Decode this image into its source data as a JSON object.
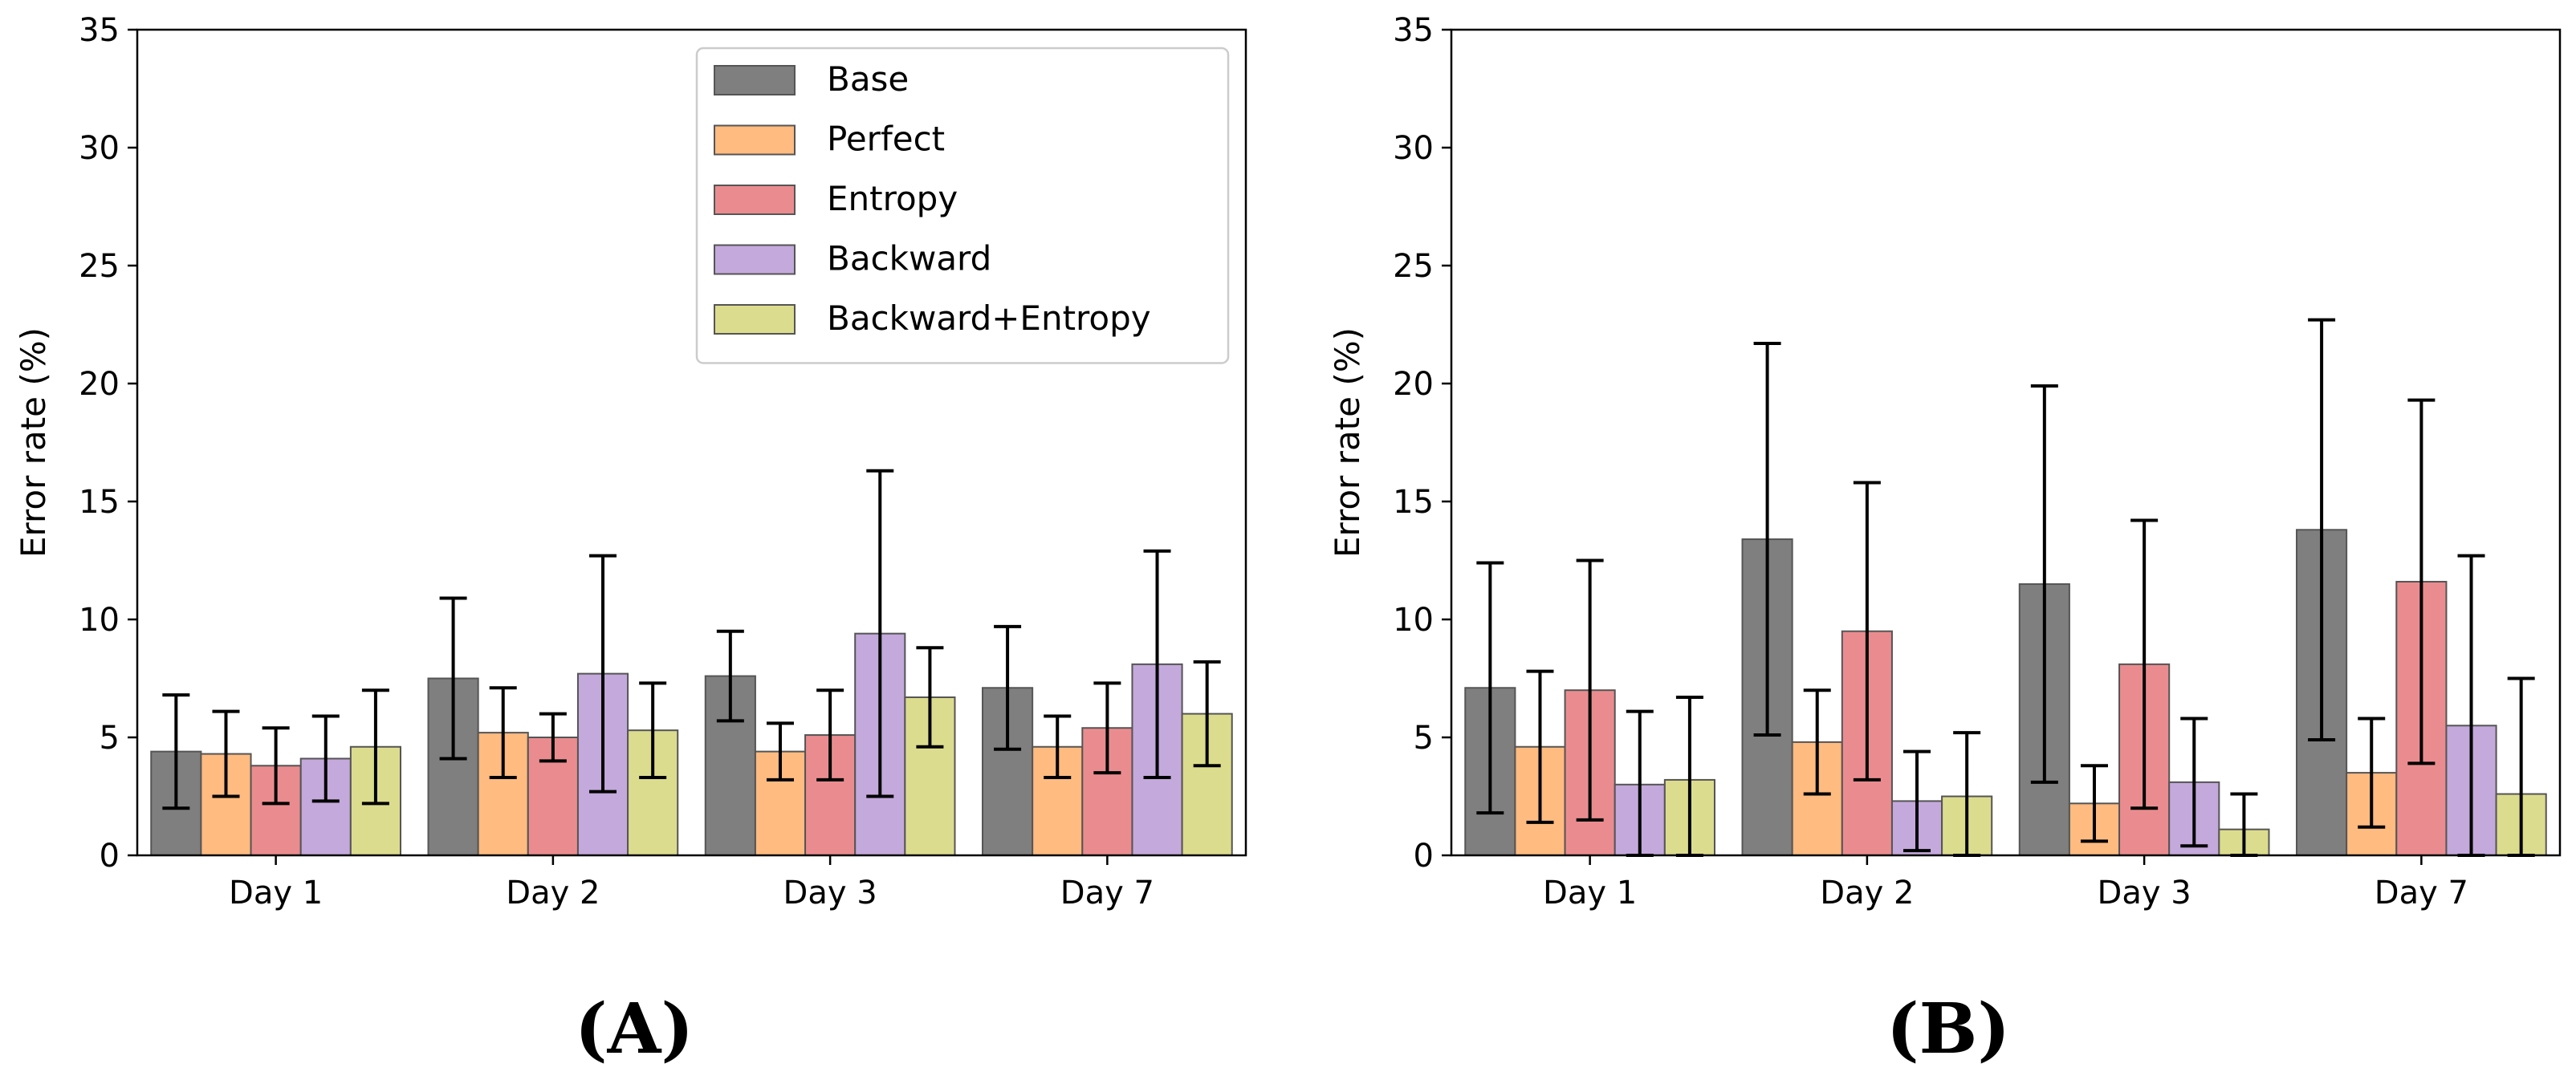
{
  "chart_data": [
    {
      "type": "bar",
      "panel_label": "(A)",
      "ylabel": "Error rate (%)",
      "xlabel": "",
      "ylim": [
        0,
        35
      ],
      "yticks": [
        "0",
        "5",
        "10",
        "15",
        "20",
        "25",
        "30",
        "35"
      ],
      "categories": [
        "Day 1",
        "Day 2",
        "Day 3",
        "Day 7"
      ],
      "legend_position": "top-right",
      "series": [
        {
          "name": "Base",
          "color": "#7f7f7f",
          "values": [
            4.4,
            7.5,
            7.6,
            7.1
          ],
          "errors": [
            2.4,
            3.4,
            1.9,
            2.6
          ]
        },
        {
          "name": "Perfect",
          "color": "#ffbb80",
          "values": [
            4.3,
            5.2,
            4.4,
            4.6
          ],
          "errors": [
            1.8,
            1.9,
            1.2,
            1.3
          ]
        },
        {
          "name": "Entropy",
          "color": "#ea8c8f",
          "values": [
            3.8,
            5.0,
            5.1,
            5.4
          ],
          "errors": [
            1.6,
            1.0,
            1.9,
            1.9
          ]
        },
        {
          "name": "Backward",
          "color": "#c4a9dc",
          "values": [
            4.1,
            7.7,
            9.4,
            8.1
          ],
          "errors": [
            1.8,
            5.0,
            6.9,
            4.8
          ]
        },
        {
          "name": "Backward+Entropy",
          "color": "#dcdc8e",
          "values": [
            4.6,
            5.3,
            6.7,
            6.0
          ],
          "errors": [
            2.4,
            2.0,
            2.1,
            2.2
          ]
        }
      ]
    },
    {
      "type": "bar",
      "panel_label": "(B)",
      "ylabel": "Error rate (%)",
      "xlabel": "",
      "ylim": [
        0,
        35
      ],
      "yticks": [
        "0",
        "5",
        "10",
        "15",
        "20",
        "25",
        "30",
        "35"
      ],
      "categories": [
        "Day 1",
        "Day 2",
        "Day 3",
        "Day 7"
      ],
      "legend_position": "none",
      "series": [
        {
          "name": "Base",
          "color": "#7f7f7f",
          "values": [
            7.1,
            13.4,
            11.5,
            13.8
          ],
          "errors": [
            5.3,
            8.3,
            8.4,
            8.9
          ]
        },
        {
          "name": "Perfect",
          "color": "#ffbb80",
          "values": [
            4.6,
            4.8,
            2.2,
            3.5
          ],
          "errors": [
            3.2,
            2.2,
            1.6,
            2.3
          ]
        },
        {
          "name": "Entropy",
          "color": "#ea8c8f",
          "values": [
            7.0,
            9.5,
            8.1,
            11.6
          ],
          "errors": [
            5.5,
            6.3,
            6.1,
            7.7
          ]
        },
        {
          "name": "Backward",
          "color": "#c4a9dc",
          "values": [
            3.0,
            2.3,
            3.1,
            5.5
          ],
          "errors": [
            3.1,
            2.1,
            2.7,
            7.2
          ]
        },
        {
          "name": "Backward+Entropy",
          "color": "#dcdc8e",
          "values": [
            3.2,
            2.5,
            1.1,
            2.6
          ],
          "errors": [
            3.5,
            2.7,
            1.5,
            4.9
          ]
        }
      ]
    }
  ]
}
